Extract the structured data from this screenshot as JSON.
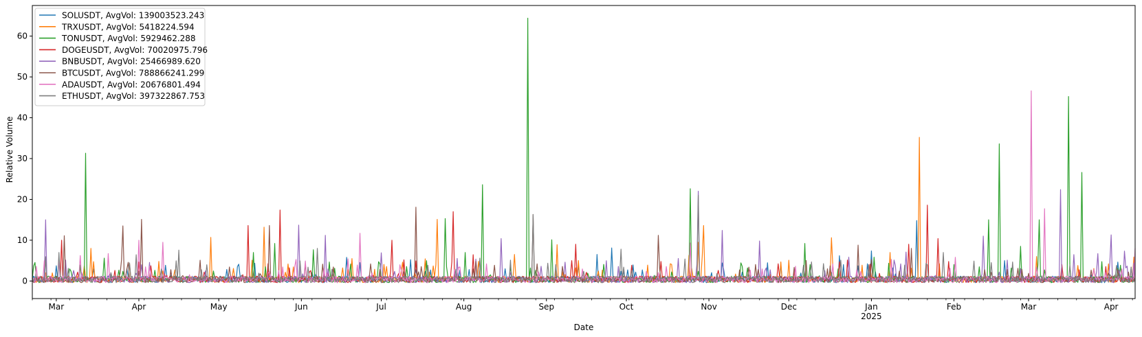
{
  "chart_data": {
    "type": "line",
    "title": "",
    "xlabel": "Date",
    "ylabel": "Relative Volume",
    "ylim": [
      -4.3,
      67.5
    ],
    "yticks": [
      0,
      10,
      20,
      30,
      40,
      50,
      60
    ],
    "xlim": [
      "2024-02-21",
      "2025-04-10"
    ],
    "xticks": [
      {
        "date": "2024-03-01",
        "label": "Mar"
      },
      {
        "date": "2024-04-01",
        "label": "Apr"
      },
      {
        "date": "2024-05-01",
        "label": "May"
      },
      {
        "date": "2024-06-01",
        "label": "Jun"
      },
      {
        "date": "2024-07-01",
        "label": "Jul"
      },
      {
        "date": "2024-08-01",
        "label": "Aug"
      },
      {
        "date": "2024-09-01",
        "label": "Sep"
      },
      {
        "date": "2024-10-01",
        "label": "Oct"
      },
      {
        "date": "2024-11-01",
        "label": "Nov"
      },
      {
        "date": "2024-12-01",
        "label": "Dec"
      },
      {
        "date": "2025-01-01",
        "label": "Jan",
        "sublabel": "2025"
      },
      {
        "date": "2025-02-01",
        "label": "Feb"
      },
      {
        "date": "2025-03-01",
        "label": "Mar"
      },
      {
        "date": "2025-04-01",
        "label": "Apr"
      }
    ],
    "grid": false,
    "legend_position": "top-left",
    "baseline": 0.4,
    "series": [
      {
        "name": "SOLUSDT, AvgVol: 139003523.243",
        "color": "#1f77b4",
        "spikes": [
          [
            "2024-02-26",
            5.5
          ],
          [
            "2024-06-18",
            5.8
          ],
          [
            "2024-09-20",
            6.5
          ],
          [
            "2024-12-20",
            6.2
          ],
          [
            "2025-01-18",
            14.8
          ],
          [
            "2025-02-20",
            5.0
          ]
        ]
      },
      {
        "name": "TRXUSDT, AvgVol: 5418224.594",
        "color": "#ff7f0e",
        "spikes": [
          [
            "2024-03-14",
            8.0
          ],
          [
            "2024-04-28",
            10.7
          ],
          [
            "2024-05-18",
            13.2
          ],
          [
            "2024-06-20",
            5.5
          ],
          [
            "2024-07-22",
            15.1
          ],
          [
            "2024-08-20",
            6.5
          ],
          [
            "2024-09-05",
            8.9
          ],
          [
            "2024-10-28",
            9.5
          ],
          [
            "2024-10-30",
            13.6
          ],
          [
            "2024-12-17",
            10.6
          ],
          [
            "2025-01-08",
            7.0
          ],
          [
            "2025-01-19",
            35.2
          ],
          [
            "2025-03-04",
            6.0
          ]
        ]
      },
      {
        "name": "TONUSDT, AvgVol: 5929462.288",
        "color": "#2ca02c",
        "spikes": [
          [
            "2024-03-12",
            31.3
          ],
          [
            "2024-05-14",
            7.0
          ],
          [
            "2024-05-22",
            9.2
          ],
          [
            "2024-07-25",
            15.3
          ],
          [
            "2024-08-08",
            23.6
          ],
          [
            "2024-08-25",
            64.4
          ],
          [
            "2024-09-03",
            10.1
          ],
          [
            "2024-10-25",
            22.6
          ],
          [
            "2024-12-07",
            9.2
          ],
          [
            "2025-02-18",
            33.6
          ],
          [
            "2025-02-26",
            8.5
          ],
          [
            "2025-03-05",
            15.0
          ],
          [
            "2025-03-16",
            45.2
          ],
          [
            "2025-03-21",
            26.6
          ],
          [
            "2025-02-14",
            15.0
          ]
        ]
      },
      {
        "name": "DOGEUSDT, AvgVol: 70020975.796",
        "color": "#d62728",
        "spikes": [
          [
            "2024-03-03",
            10.0
          ],
          [
            "2024-05-12",
            13.6
          ],
          [
            "2024-05-24",
            17.4
          ],
          [
            "2024-07-05",
            10.0
          ],
          [
            "2024-07-28",
            17.0
          ],
          [
            "2024-09-12",
            9.0
          ],
          [
            "2025-01-22",
            18.6
          ],
          [
            "2025-01-26",
            10.4
          ],
          [
            "2025-01-15",
            9.0
          ]
        ]
      },
      {
        "name": "BNBUSDT, AvgVol: 25466989.620",
        "color": "#9467bd",
        "spikes": [
          [
            "2024-02-26",
            15.0
          ],
          [
            "2024-05-31",
            13.7
          ],
          [
            "2024-06-10",
            11.2
          ],
          [
            "2024-08-15",
            10.4
          ],
          [
            "2024-10-28",
            22.0
          ],
          [
            "2024-11-06",
            12.4
          ],
          [
            "2024-11-20",
            9.8
          ],
          [
            "2025-02-12",
            11.0
          ],
          [
            "2025-03-13",
            22.4
          ],
          [
            "2025-04-01",
            11.3
          ]
        ]
      },
      {
        "name": "BTCUSDT, AvgVol: 788866241.299",
        "color": "#8c564b",
        "spikes": [
          [
            "2024-03-04",
            11.1
          ],
          [
            "2024-03-26",
            13.5
          ],
          [
            "2024-04-02",
            15.1
          ],
          [
            "2024-05-20",
            13.6
          ],
          [
            "2024-07-14",
            18.1
          ],
          [
            "2024-08-27",
            16.3
          ],
          [
            "2024-10-13",
            11.2
          ],
          [
            "2024-12-27",
            8.8
          ],
          [
            "2025-01-16",
            8.0
          ]
        ]
      },
      {
        "name": "ADAUSDT, AvgVol: 20676801.494",
        "color": "#e377c2",
        "spikes": [
          [
            "2024-04-01",
            10.0
          ],
          [
            "2024-04-10",
            9.5
          ],
          [
            "2024-06-23",
            11.7
          ],
          [
            "2024-10-25",
            9.3
          ],
          [
            "2025-03-02",
            46.6
          ],
          [
            "2025-03-07",
            17.7
          ],
          [
            "2025-04-10",
            8.0
          ]
        ]
      },
      {
        "name": "ETHUSDT, AvgVol: 397322867.753",
        "color": "#7f7f7f",
        "spikes": [
          [
            "2024-03-02",
            7.0
          ],
          [
            "2024-06-07",
            8.0
          ],
          [
            "2024-08-27",
            16.3
          ],
          [
            "2024-10-28",
            21.0
          ],
          [
            "2025-01-28",
            7.0
          ]
        ]
      }
    ]
  }
}
